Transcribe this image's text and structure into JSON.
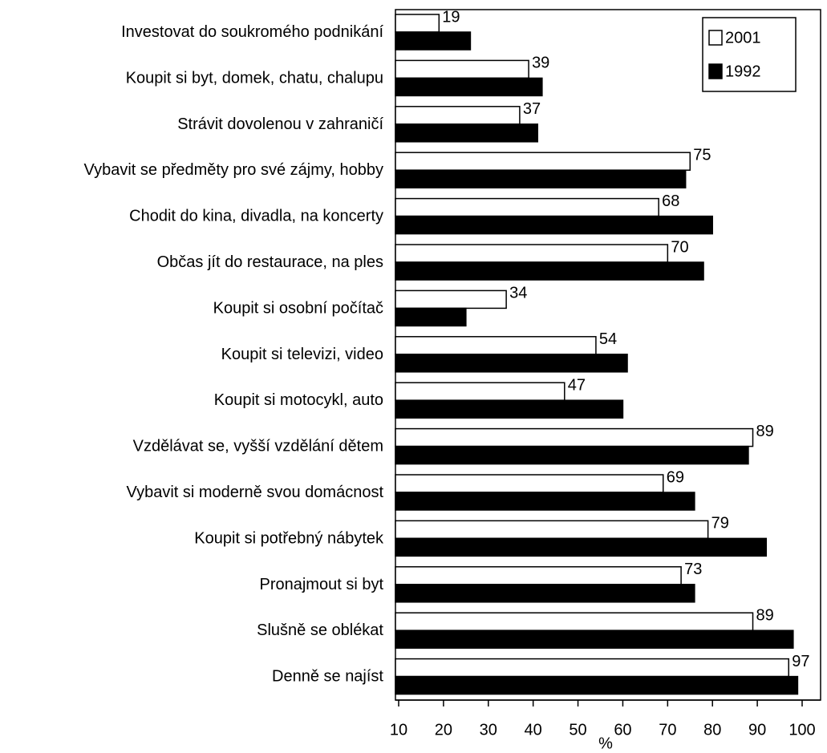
{
  "chart_data": {
    "type": "hbar",
    "categories": [
      "Investovat do soukromého podnikání",
      "Koupit si byt, domek, chatu, chalupu",
      "Strávit dovolenou v zahraničí",
      "Vybavit se předměty pro své zájmy, hobby",
      "Chodit do kina, divadla, na koncerty",
      "Občas jít do restaurace, na ples",
      "Koupit si osobní počítač",
      "Koupit si televizi, video",
      "Koupit si motocykl, auto",
      "Vzdělávat se, vyšší vzdělání dětem",
      "Vybavit si moderně svou domácnost",
      "Koupit si potřebný nábytek",
      "Pronajmout si byt",
      "Slušně se oblékat",
      "Denně se najíst"
    ],
    "series": [
      {
        "name": "2001",
        "color": "#ffffff",
        "values": [
          19,
          39,
          37,
          75,
          68,
          70,
          34,
          54,
          47,
          89,
          69,
          79,
          73,
          89,
          97
        ]
      },
      {
        "name": "1992",
        "color": "#000000",
        "values": [
          26,
          42,
          41,
          74,
          80,
          78,
          25,
          61,
          60,
          88,
          76,
          92,
          76,
          98,
          99
        ]
      }
    ],
    "xlim": [
      10,
      100
    ],
    "xticks": [
      10,
      20,
      30,
      40,
      50,
      60,
      70,
      80,
      90,
      100
    ],
    "x_label": "%",
    "legend": "top-right"
  }
}
